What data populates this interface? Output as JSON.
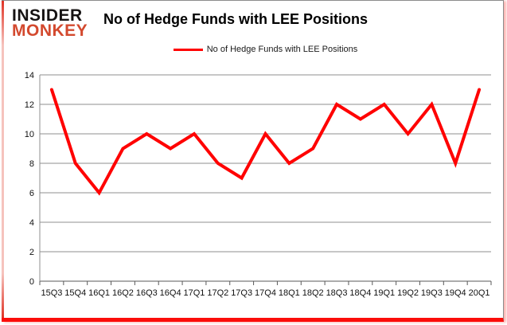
{
  "brand": {
    "line1": "INSIDER",
    "line2": "MONKEY"
  },
  "header": {
    "title": "No of Hedge Funds with LEE Positions"
  },
  "legend": {
    "label": "No of Hedge Funds with LEE Positions",
    "color": "#ff0000"
  },
  "colors": {
    "series_red": "#ff0000",
    "brand_red": "#d3492e",
    "gridline_gray": "#8f8f8f",
    "axis_gray": "#595959",
    "frame_red": "#fb0d0a"
  },
  "chart_data": {
    "type": "line",
    "title": "No of Hedge Funds with LEE Positions",
    "categories": [
      "15Q3",
      "15Q4",
      "16Q1",
      "16Q2",
      "16Q3",
      "16Q4",
      "17Q1",
      "17Q2",
      "17Q3",
      "17Q4",
      "18Q1",
      "18Q2",
      "18Q3",
      "18Q4",
      "19Q1",
      "19Q2",
      "19Q3",
      "19Q4",
      "20Q1"
    ],
    "series": [
      {
        "name": "No of Hedge Funds with LEE Positions",
        "color": "#ff0000",
        "values": [
          13,
          8,
          6,
          9,
          10,
          9,
          10,
          8,
          7,
          10,
          8,
          9,
          12,
          11,
          12,
          10,
          12,
          8,
          13
        ]
      }
    ],
    "xlabel": "",
    "ylabel": "",
    "ylim": [
      0,
      14
    ],
    "ytick_step": 2,
    "grid": "horizontal",
    "legend_position": "top-center"
  }
}
